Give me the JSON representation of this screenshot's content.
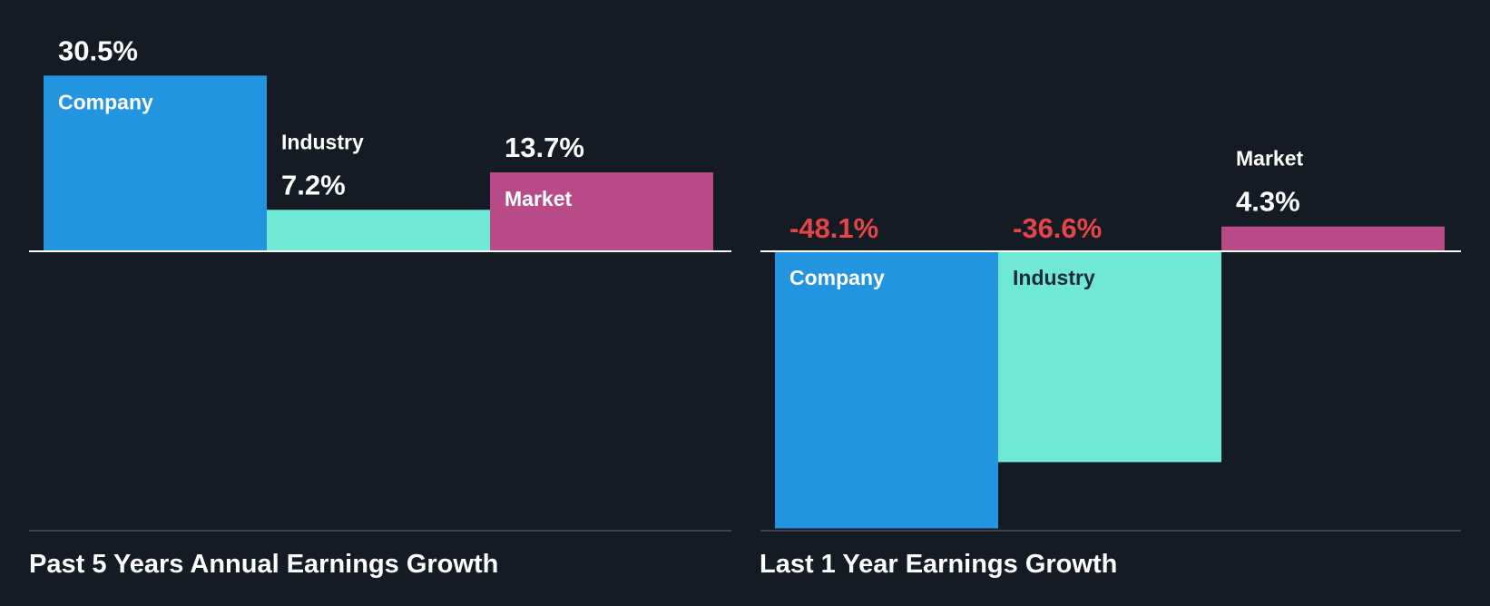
{
  "colors": {
    "background": "#151b24",
    "company": "#2394e0",
    "industry": "#70e8d6",
    "market": "#b84b87",
    "text": "#ffffff",
    "text_dark": "#1d2b36",
    "negative": "#e64545",
    "baseline": "#ffffff",
    "bottom_line": "#4a5058"
  },
  "chart_data": [
    {
      "type": "bar",
      "title": "Past 5 Years Annual Earnings Growth",
      "categories": [
        "Company",
        "Industry",
        "Market"
      ],
      "values": [
        30.5,
        7.2,
        13.7
      ],
      "value_labels": [
        "30.5%",
        "7.2%",
        "13.7%"
      ],
      "unit": "%",
      "xlabel": "",
      "ylabel": "",
      "ylim": [
        -48.6,
        30.5
      ]
    },
    {
      "type": "bar",
      "title": "Last 1 Year Earnings Growth",
      "categories": [
        "Company",
        "Industry",
        "Market"
      ],
      "values": [
        -48.1,
        -36.6,
        4.3
      ],
      "value_labels": [
        "-48.1%",
        "-36.6%",
        "4.3%"
      ],
      "unit": "%",
      "xlabel": "",
      "ylabel": "",
      "ylim": [
        -48.6,
        30.5
      ]
    }
  ]
}
